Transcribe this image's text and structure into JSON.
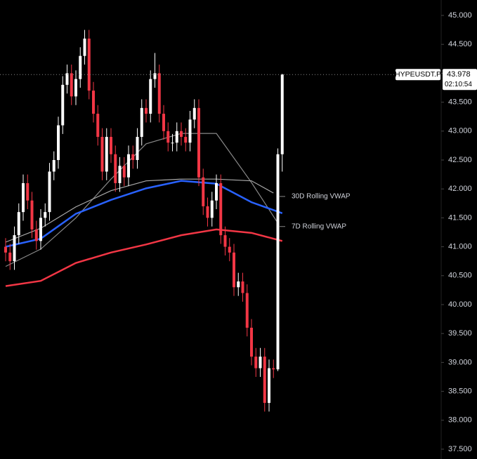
{
  "chart_data": {
    "type": "candlestick",
    "symbol": "HYPEUSDT.P",
    "last_price": 43.978,
    "countdown": "02:10:54",
    "up_color": "#ffffff",
    "down_color": "#f23645",
    "ylim": [
      37.33,
      45.267
    ],
    "yticks": [
      {
        "value": 37.5,
        "label": "37.500"
      },
      {
        "value": 38,
        "label": "38.000"
      },
      {
        "value": 38.5,
        "label": "38.500"
      },
      {
        "value": 39,
        "label": "39.000"
      },
      {
        "value": 39.5,
        "label": "39.500"
      },
      {
        "value": 40,
        "label": "40.000"
      },
      {
        "value": 40.5,
        "label": "40.500"
      },
      {
        "value": 41,
        "label": "41.000"
      },
      {
        "value": 41.5,
        "label": "41.500"
      },
      {
        "value": 42,
        "label": "42.000"
      },
      {
        "value": 42.5,
        "label": "42.500"
      },
      {
        "value": 43,
        "label": "43.000"
      },
      {
        "value": 43.5,
        "label": "43.500"
      },
      {
        "value": 44,
        "label": "44.000"
      },
      {
        "value": 44.5,
        "label": "44.500"
      },
      {
        "value": 45,
        "label": "45.000"
      }
    ],
    "open": [
      41.0,
      40.9,
      40.75,
      41.2,
      41.6,
      42.1,
      41.8,
      41.3,
      41.1,
      41.5,
      41.6,
      42.3,
      42.5,
      43.1,
      43.8,
      44.0,
      43.6,
      43.9,
      44.3,
      44.6,
      43.7,
      43.3,
      42.9,
      42.3,
      42.9,
      42.6,
      42.1,
      42.4,
      42.2,
      42.6,
      42.5,
      42.9,
      43.4,
      43.3,
      43.9,
      44.0,
      43.3,
      43.0,
      42.8,
      42.8,
      43.0,
      42.9,
      42.8,
      43.2,
      43.4,
      42.2,
      41.7,
      41.5,
      41.8,
      42.1,
      41.2,
      41.0,
      40.9,
      40.3,
      40.4,
      40.2,
      39.6,
      39.1,
      38.9,
      39.1,
      38.3,
      38.9,
      38.88,
      42.6
    ],
    "high": [
      41.15,
      41.05,
      41.35,
      41.75,
      42.25,
      42.25,
      41.95,
      41.45,
      41.65,
      41.75,
      42.45,
      42.65,
      43.25,
      43.95,
      44.15,
      44.15,
      44.05,
      44.45,
      44.75,
      44.75,
      43.85,
      43.45,
      43.05,
      43.05,
      43.05,
      42.75,
      42.55,
      42.55,
      42.75,
      42.75,
      43.05,
      43.55,
      43.55,
      44.05,
      44.35,
      44.15,
      43.45,
      43.15,
      42.95,
      43.15,
      43.15,
      43.05,
      43.35,
      43.55,
      43.55,
      42.35,
      41.85,
      41.95,
      42.25,
      42.25,
      41.35,
      41.15,
      41.05,
      40.55,
      40.55,
      40.35,
      39.75,
      39.25,
      39.25,
      39.25,
      39.05,
      39.05,
      42.7,
      43.99
    ],
    "low": [
      40.75,
      40.6,
      40.6,
      41.05,
      41.45,
      41.65,
      41.15,
      40.95,
      40.95,
      41.35,
      41.45,
      42.15,
      42.35,
      42.95,
      43.65,
      43.45,
      43.45,
      43.75,
      44.15,
      43.55,
      43.15,
      42.75,
      42.15,
      42.15,
      42.45,
      41.95,
      41.95,
      42.05,
      42.05,
      42.35,
      42.35,
      42.75,
      43.15,
      43.15,
      43.75,
      43.15,
      42.85,
      42.65,
      42.65,
      42.65,
      42.75,
      42.65,
      42.65,
      43.05,
      42.05,
      41.55,
      41.35,
      41.35,
      41.65,
      41.05,
      40.85,
      40.75,
      40.15,
      40.15,
      40.05,
      39.45,
      38.95,
      38.75,
      38.75,
      38.15,
      38.15,
      38.73,
      38.85,
      42.3
    ],
    "close": [
      40.9,
      40.75,
      41.2,
      41.6,
      42.1,
      41.8,
      41.3,
      41.1,
      41.5,
      41.6,
      42.3,
      42.5,
      43.1,
      43.8,
      44.0,
      43.6,
      43.9,
      44.3,
      44.6,
      43.7,
      43.3,
      42.9,
      42.3,
      42.9,
      42.6,
      42.1,
      42.4,
      42.2,
      42.6,
      42.5,
      42.9,
      43.4,
      43.3,
      43.9,
      44.0,
      43.3,
      43.0,
      42.8,
      42.8,
      43.0,
      42.9,
      42.8,
      43.2,
      43.4,
      42.2,
      41.7,
      41.5,
      41.8,
      42.1,
      41.2,
      41.0,
      40.9,
      40.3,
      40.4,
      40.2,
      39.6,
      39.1,
      38.9,
      39.1,
      38.3,
      38.9,
      38.88,
      42.6,
      43.978
    ],
    "lines": [
      {
        "color": "#888888",
        "x": [
          0,
          8,
          16,
          24,
          32,
          40,
          48,
          56,
          62
        ],
        "values": [
          40.66,
          40.96,
          41.5,
          42.17,
          42.78,
          42.96,
          42.96,
          42.11,
          41.41
        ]
      },
      {
        "color": "#aaaaaa",
        "x": [
          0,
          8,
          16,
          24,
          32,
          40,
          48,
          56,
          61
        ],
        "values": [
          41.08,
          41.32,
          41.69,
          41.97,
          42.14,
          42.17,
          42.17,
          42.14,
          41.93
        ]
      },
      {
        "color": "#2962ff",
        "x": [
          0,
          8,
          16,
          24,
          32,
          40,
          48,
          56,
          63
        ],
        "values": [
          41.0,
          41.14,
          41.57,
          41.81,
          42.01,
          42.14,
          42.09,
          41.77,
          41.58
        ]
      },
      {
        "color": "#f23645",
        "x": [
          0,
          8,
          16,
          24,
          32,
          40,
          48,
          56,
          63
        ],
        "values": [
          40.32,
          40.41,
          40.72,
          40.9,
          41.04,
          41.2,
          41.3,
          41.24,
          41.1
        ]
      }
    ],
    "annotations": [
      {
        "text": "30D Rolling VWAP",
        "value": 41.87
      },
      {
        "text": "7D Rolling VWAP",
        "value": 41.35
      }
    ]
  }
}
